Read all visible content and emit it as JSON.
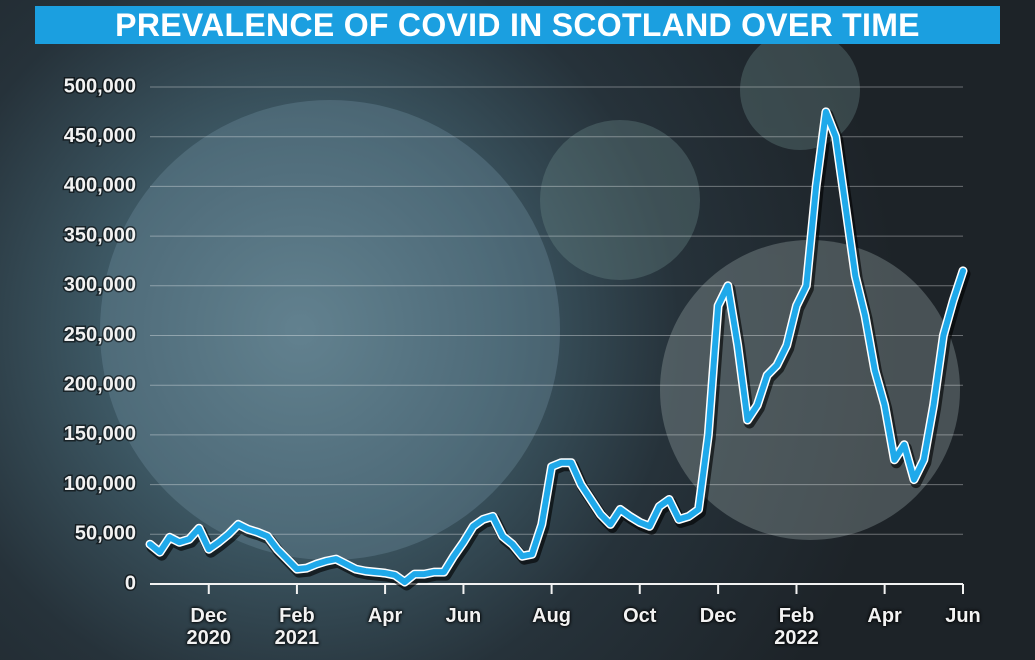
{
  "chart_data": {
    "type": "line",
    "title": "PREVALENCE OF COVID IN SCOTLAND OVER TIME",
    "categories": [
      null,
      null,
      null,
      null,
      null,
      null,
      "Dec 2020",
      null,
      null,
      null,
      null,
      null,
      null,
      null,
      null,
      "Feb 2021",
      null,
      null,
      null,
      null,
      null,
      null,
      null,
      null,
      "Apr",
      null,
      null,
      null,
      null,
      null,
      null,
      null,
      "Jun",
      null,
      null,
      null,
      null,
      null,
      null,
      null,
      null,
      "Aug",
      null,
      null,
      null,
      null,
      null,
      null,
      null,
      null,
      "Oct",
      null,
      null,
      null,
      null,
      null,
      null,
      null,
      "Dec",
      null,
      null,
      null,
      null,
      null,
      null,
      null,
      "Feb 2022",
      null,
      null,
      null,
      null,
      null,
      null,
      null,
      null,
      "Apr",
      null,
      null,
      null,
      null,
      null,
      null,
      null,
      "Jun"
    ],
    "series": [
      {
        "color": "#1fa9ea",
        "values": [
          40000,
          32000,
          47000,
          42000,
          45000,
          56000,
          35000,
          42000,
          50000,
          60000,
          55000,
          52000,
          48000,
          35000,
          25000,
          15000,
          16000,
          20000,
          23000,
          25000,
          20000,
          15000,
          13000,
          12000,
          11000,
          9000,
          2000,
          10000,
          10000,
          12000,
          12000,
          28000,
          42000,
          58000,
          65000,
          68000,
          48000,
          40000,
          28000,
          30000,
          60000,
          118000,
          122000,
          122000,
          100000,
          85000,
          70000,
          60000,
          75000,
          68000,
          62000,
          58000,
          78000,
          85000,
          65000,
          68000,
          75000,
          150000,
          280000,
          300000,
          240000,
          165000,
          180000,
          210000,
          220000,
          240000,
          280000,
          300000,
          400000,
          475000,
          450000,
          380000,
          310000,
          270000,
          215000,
          180000,
          125000,
          140000,
          105000,
          125000,
          180000,
          250000,
          285000,
          315000
        ]
      }
    ],
    "ylim": [
      0,
      500000
    ],
    "yticks": [
      0,
      {
        "value": 50000,
        "label": "50,000"
      },
      {
        "value": 100000,
        "label": "100,000"
      },
      {
        "value": 150000,
        "label": "150,000"
      },
      {
        "value": 200000,
        "label": "200,000"
      },
      {
        "value": 250000,
        "label": "250,000"
      },
      {
        "value": 300000,
        "label": "300,000"
      },
      {
        "value": 350000,
        "label": "350,000"
      },
      {
        "value": 400000,
        "label": "400,000"
      },
      {
        "value": 450000,
        "label": "450,000"
      },
      {
        "value": 500000,
        "label": "500,000"
      }
    ],
    "grid": true
  }
}
